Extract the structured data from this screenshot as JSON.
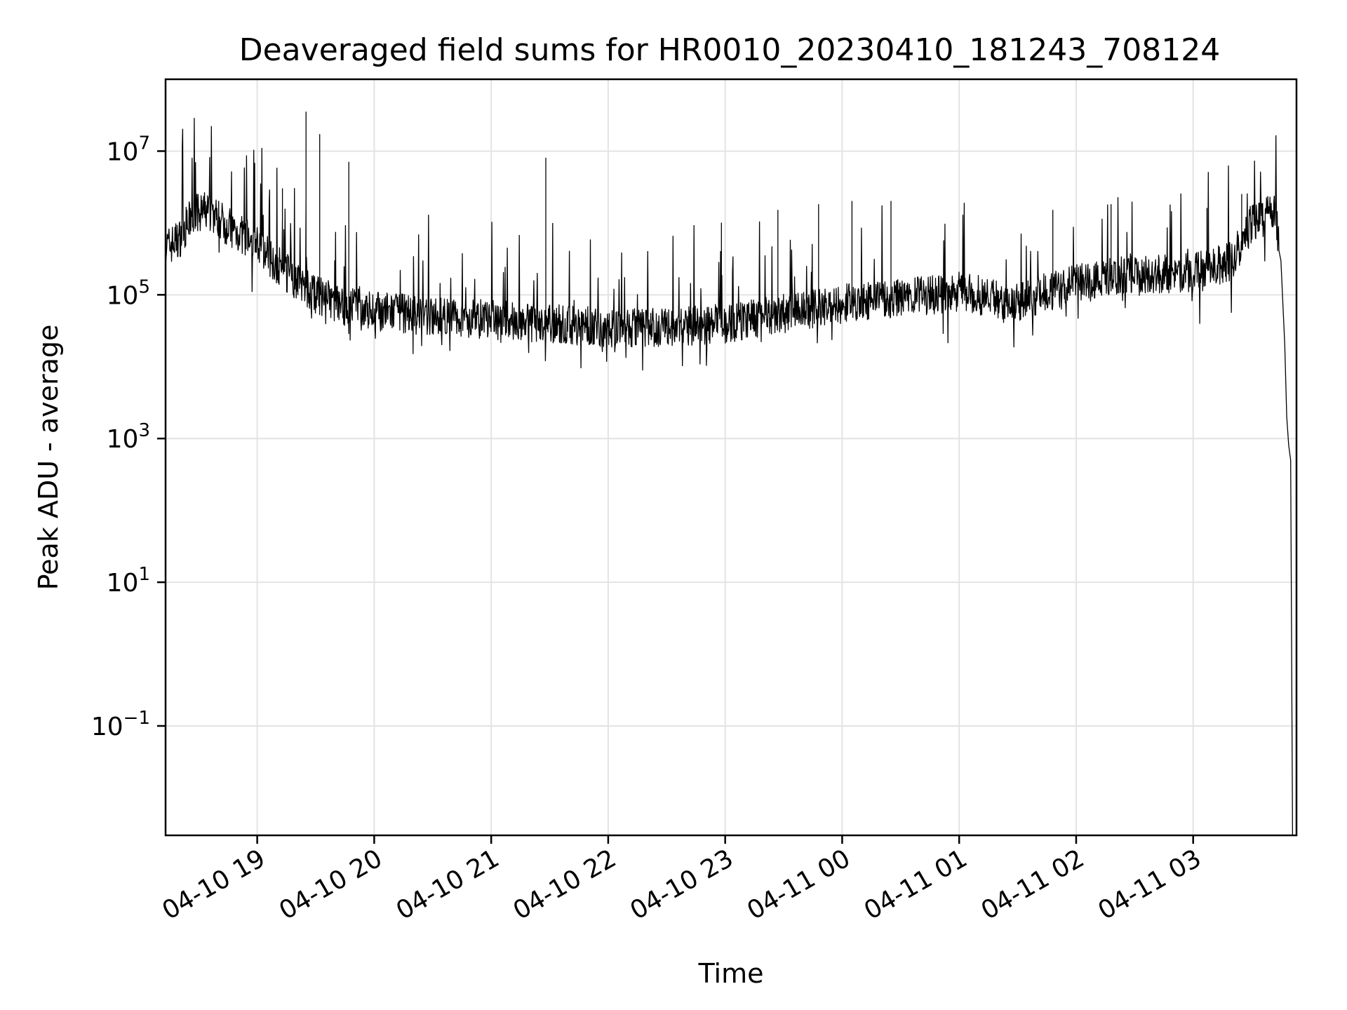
{
  "chart_data": {
    "type": "line",
    "title": "Deaveraged field sums for HR0010_20230410_181243_708124",
    "xlabel": "Time",
    "ylabel": "Peak ADU - average",
    "yscale": "log",
    "grid": true,
    "x_range": [
      "2023-04-10 18:13",
      "2023-04-11 03:53"
    ],
    "ylim": [
      0.003,
      100000000.0
    ],
    "x_ticks": [
      {
        "time": "2023-04-10 19:00",
        "label": "04-10 19"
      },
      {
        "time": "2023-04-10 20:00",
        "label": "04-10 20"
      },
      {
        "time": "2023-04-10 21:00",
        "label": "04-10 21"
      },
      {
        "time": "2023-04-10 22:00",
        "label": "04-10 22"
      },
      {
        "time": "2023-04-10 23:00",
        "label": "04-10 23"
      },
      {
        "time": "2023-04-11 00:00",
        "label": "04-11 00"
      },
      {
        "time": "2023-04-11 01:00",
        "label": "04-11 01"
      },
      {
        "time": "2023-04-11 02:00",
        "label": "04-11 02"
      },
      {
        "time": "2023-04-11 03:00",
        "label": "04-11 03"
      }
    ],
    "y_ticks": [
      {
        "value": 0.1,
        "mantissa": "10",
        "exponent": "−1"
      },
      {
        "value": 10,
        "mantissa": "10",
        "exponent": "1"
      },
      {
        "value": 1000,
        "mantissa": "10",
        "exponent": "3"
      },
      {
        "value": 100000,
        "mantissa": "10",
        "exponent": "5"
      },
      {
        "value": 10000000,
        "mantissa": "10",
        "exponent": "7"
      }
    ],
    "series": [
      {
        "color": "#000000",
        "baseline": [
          {
            "x": "2023-04-10 18:13",
            "y": 450000
          },
          {
            "x": "2023-04-10 18:20",
            "y": 600000
          },
          {
            "x": "2023-04-10 18:27",
            "y": 1300000
          },
          {
            "x": "2023-04-10 18:35",
            "y": 1500000
          },
          {
            "x": "2023-04-10 18:45",
            "y": 900000
          },
          {
            "x": "2023-04-10 19:00",
            "y": 500000
          },
          {
            "x": "2023-04-10 19:15",
            "y": 200000
          },
          {
            "x": "2023-04-10 19:30",
            "y": 100000
          },
          {
            "x": "2023-04-10 19:45",
            "y": 70000
          },
          {
            "x": "2023-04-10 20:00",
            "y": 60000
          },
          {
            "x": "2023-04-10 20:30",
            "y": 50000
          },
          {
            "x": "2023-04-10 21:00",
            "y": 45000
          },
          {
            "x": "2023-04-10 21:30",
            "y": 40000
          },
          {
            "x": "2023-04-10 22:00",
            "y": 35000
          },
          {
            "x": "2023-04-10 22:30",
            "y": 35000
          },
          {
            "x": "2023-04-10 23:00",
            "y": 40000
          },
          {
            "x": "2023-04-10 23:30",
            "y": 55000
          },
          {
            "x": "2023-04-11 00:00",
            "y": 75000
          },
          {
            "x": "2023-04-11 00:30",
            "y": 90000
          },
          {
            "x": "2023-04-11 01:00",
            "y": 110000
          },
          {
            "x": "2023-04-11 01:30",
            "y": 80000
          },
          {
            "x": "2023-04-11 02:00",
            "y": 150000
          },
          {
            "x": "2023-04-11 02:30",
            "y": 200000
          },
          {
            "x": "2023-04-11 03:00",
            "y": 200000
          },
          {
            "x": "2023-04-11 03:20",
            "y": 300000
          },
          {
            "x": "2023-04-11 03:30",
            "y": 1000000
          },
          {
            "x": "2023-04-11 03:42",
            "y": 1500000
          },
          {
            "x": "2023-04-11 03:45",
            "y": 300000
          },
          {
            "x": "2023-04-11 03:47",
            "y": 20000
          },
          {
            "x": "2023-04-11 03:48",
            "y": 2000
          },
          {
            "x": "2023-04-11 03:49",
            "y": 800
          },
          {
            "x": "2023-04-11 03:50",
            "y": 500
          },
          {
            "x": "2023-04-11 03:51",
            "y": 0.003
          }
        ],
        "spikes": [
          {
            "x": "2023-04-10 19:13",
            "y": 3000000
          },
          {
            "x": "2023-04-10 19:25",
            "y": 35000000
          },
          {
            "x": "2023-04-10 19:32",
            "y": 17000000
          },
          {
            "x": "2023-04-10 19:47",
            "y": 7000000
          },
          {
            "x": "2023-04-10 21:28",
            "y": 8000000
          },
          {
            "x": "2023-04-10 22:58",
            "y": 1000000
          },
          {
            "x": "2023-04-10 23:27",
            "y": 1500000
          },
          {
            "x": "2023-04-10 23:48",
            "y": 1800000
          },
          {
            "x": "2023-04-11 00:05",
            "y": 2000000
          },
          {
            "x": "2023-04-11 00:25",
            "y": 2000000
          },
          {
            "x": "2023-04-11 01:48",
            "y": 1500000
          },
          {
            "x": "2023-04-11 02:18",
            "y": 1800000
          },
          {
            "x": "2023-04-11 03:07",
            "y": 1600000
          },
          {
            "x": "2023-04-11 03:25",
            "y": 2500000
          }
        ]
      }
    ]
  }
}
